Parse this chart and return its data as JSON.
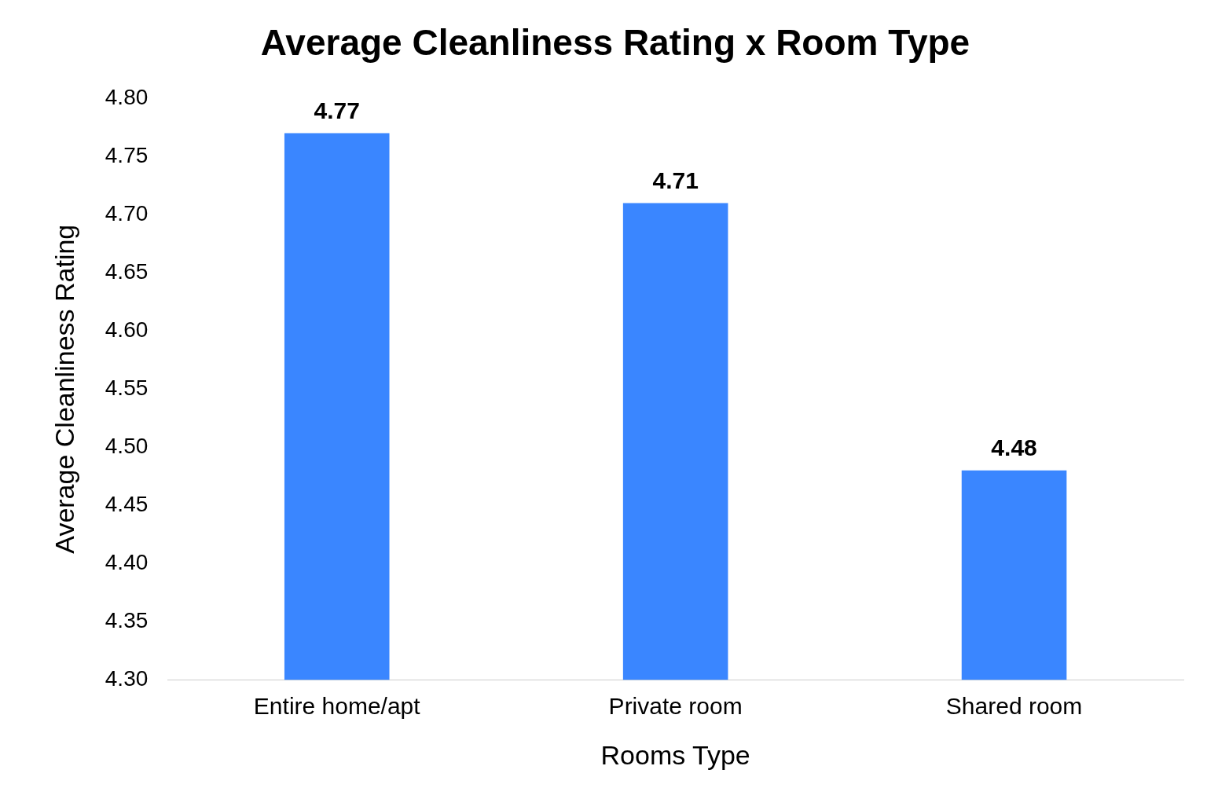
{
  "chart_data": {
    "type": "bar",
    "title": "Average Cleanliness Rating x Room Type",
    "xlabel": "Rooms Type",
    "ylabel": "Average Cleanliness Rating",
    "categories": [
      "Entire home/apt",
      "Private room",
      "Shared room"
    ],
    "values": [
      4.77,
      4.71,
      4.48
    ],
    "color": "#3a86ff",
    "data_labels": true,
    "grid": false,
    "legend": false,
    "ylim": [
      4.3,
      4.8
    ],
    "yticks": [
      {
        "value": 4.3,
        "label": "4.30"
      },
      {
        "value": 4.35,
        "label": "4.35"
      },
      {
        "value": 4.4,
        "label": "4.40"
      },
      {
        "value": 4.45,
        "label": "4.45"
      },
      {
        "value": 4.5,
        "label": "4.50"
      },
      {
        "value": 4.55,
        "label": "4.55"
      },
      {
        "value": 4.6,
        "label": "4.60"
      },
      {
        "value": 4.65,
        "label": "4.65"
      },
      {
        "value": 4.7,
        "label": "4.70"
      },
      {
        "value": 4.75,
        "label": "4.75"
      },
      {
        "value": 4.8,
        "label": "4.80"
      }
    ]
  }
}
